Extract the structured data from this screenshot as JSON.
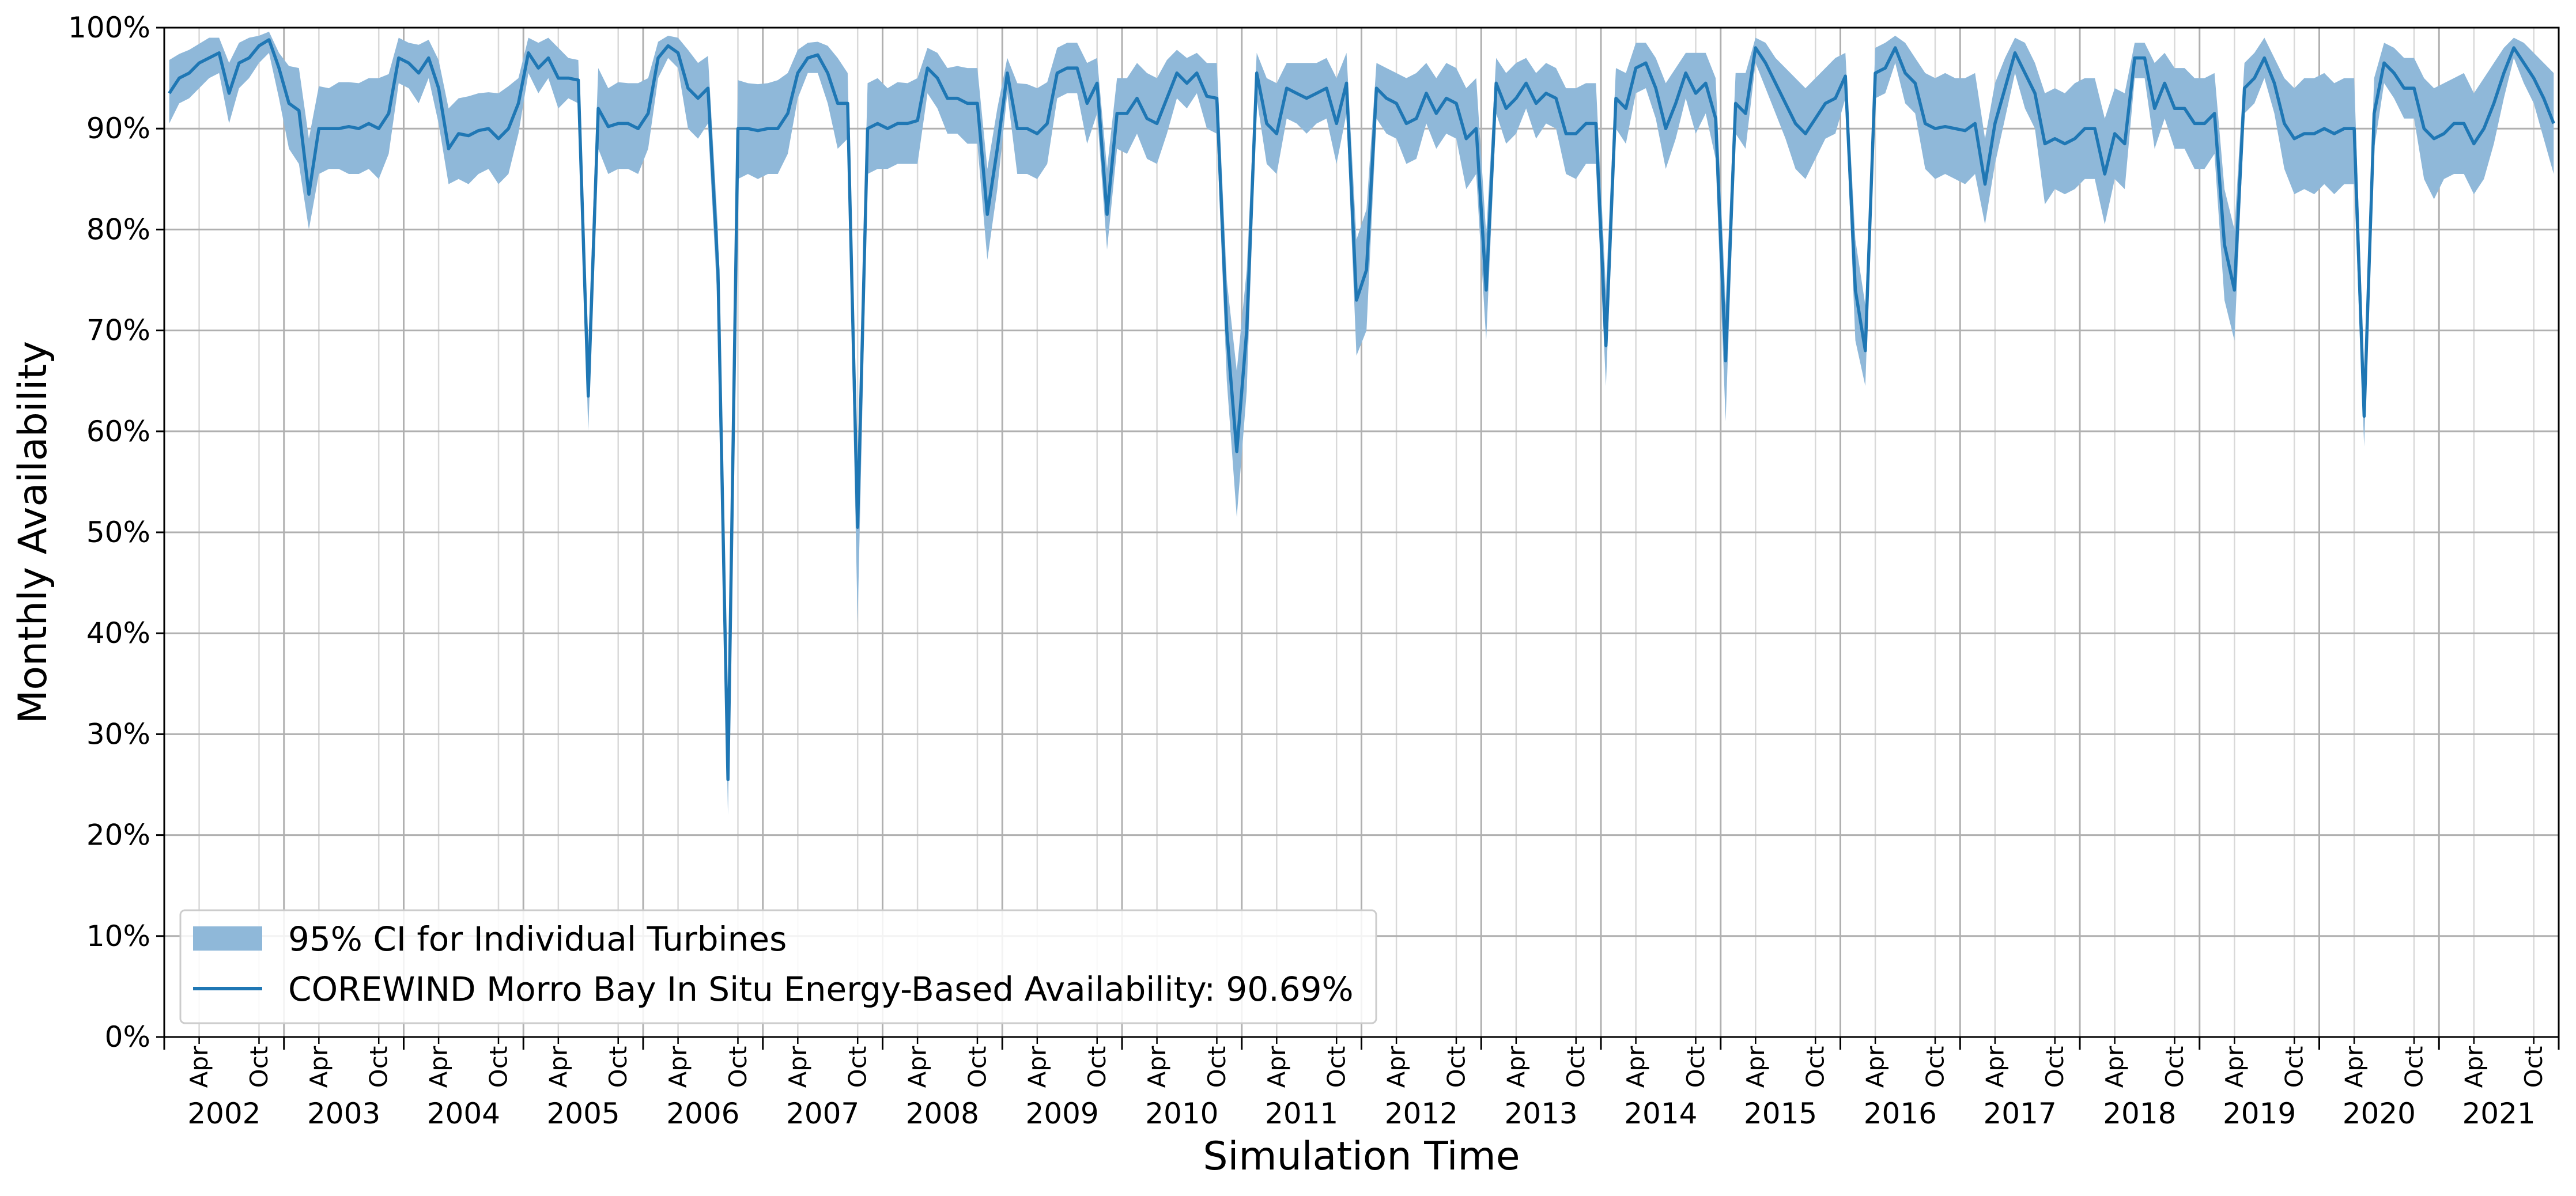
{
  "chart_data": {
    "type": "line",
    "title": "",
    "xlabel": "Simulation Time",
    "ylabel": "Monthly Availability",
    "ylim": [
      0,
      100
    ],
    "y_ticks": [
      "0%",
      "10%",
      "20%",
      "30%",
      "40%",
      "50%",
      "60%",
      "70%",
      "80%",
      "90%",
      "100%"
    ],
    "years": [
      "2002",
      "2003",
      "2004",
      "2005",
      "2006",
      "2007",
      "2008",
      "2009",
      "2010",
      "2011",
      "2012",
      "2013",
      "2014",
      "2015",
      "2016",
      "2017",
      "2018",
      "2019",
      "2020",
      "2021"
    ],
    "month_ticks": [
      "Apr",
      "Oct"
    ],
    "grid": true,
    "legend_position": "lower-left",
    "legend": {
      "ci_label": "95% CI for Individual Turbines",
      "line_label": "COREWIND Morro Bay In Situ Energy-Based Availability: 90.69%"
    },
    "colors": {
      "line": "#1f77b4",
      "band": "#8fb8d9",
      "grid_major": "#b0b0b0",
      "grid_minor": "#d9d9d9"
    },
    "series": [
      {
        "name": "COREWIND Morro Bay In Situ Energy-Based Availability: 90.69%",
        "role": "line",
        "values": [
          93.5,
          95,
          95.5,
          96.5,
          97,
          97.5,
          93.5,
          96.5,
          97,
          98.2,
          98.8,
          96,
          92.5,
          91.8,
          83.5,
          90,
          90,
          90,
          90.2,
          90,
          90.5,
          90,
          91.5,
          97,
          96.5,
          95.5,
          97,
          94,
          88,
          89.5,
          89.3,
          89.8,
          90,
          89,
          90,
          92.5,
          97.5,
          96,
          97,
          95,
          95,
          94.8,
          63.5,
          92,
          90.2,
          90.5,
          90.5,
          90,
          91.5,
          97,
          98.2,
          97.5,
          94,
          93,
          94,
          76,
          25.5,
          90,
          90,
          89.8,
          90,
          90,
          91.5,
          95.5,
          97,
          97.3,
          95.5,
          92.5,
          92.5,
          50.5,
          90,
          90.5,
          90,
          90.5,
          90.5,
          90.8,
          96,
          95,
          93,
          93,
          92.5,
          92.5,
          81.5,
          88,
          95.5,
          90,
          90,
          89.5,
          90.5,
          95.5,
          96,
          96,
          92.5,
          94.5,
          81.5,
          91.5,
          91.5,
          93,
          91,
          90.5,
          93,
          95.5,
          94.5,
          95.5,
          93.2,
          93,
          70,
          58,
          70,
          95.5,
          90.5,
          89.5,
          94,
          93.5,
          93,
          93.5,
          94,
          90.5,
          94.5,
          73,
          76,
          94,
          93,
          92.5,
          90.5,
          91,
          93.5,
          91.5,
          93,
          92.5,
          89,
          90,
          74,
          94.5,
          92,
          93,
          94.5,
          92.5,
          93.5,
          93,
          89.5,
          89.5,
          90.5,
          90.5,
          68.5,
          93,
          92,
          96,
          96.5,
          94,
          90,
          92.5,
          95.5,
          93.5,
          94.5,
          91,
          67,
          92.5,
          91.5,
          98,
          96.5,
          94.5,
          92.5,
          90.5,
          89.5,
          91,
          92.5,
          93,
          95.2,
          74,
          68,
          95.5,
          96,
          98,
          95.5,
          94.5,
          90.5,
          90,
          90.2,
          90,
          89.8,
          90.5,
          84.5,
          90.5,
          94,
          97.5,
          95.5,
          93.5,
          88.5,
          89,
          88.5,
          89,
          90,
          90,
          85.5,
          89.5,
          88.5,
          97,
          97,
          92,
          94.5,
          92,
          92,
          90.5,
          90.5,
          91.5,
          78.5,
          74,
          94,
          95,
          97,
          94.5,
          90.5,
          89,
          89.5,
          89.5,
          90,
          89.5,
          90,
          90,
          61.5,
          91.5,
          96.5,
          95.5,
          94,
          94,
          90,
          89,
          89.5,
          90.5,
          90.5,
          88.5,
          90,
          92.5,
          95.5,
          98,
          96.5,
          95,
          93,
          90.5,
          90,
          90,
          84.5,
          90,
          89,
          82,
          90.5,
          95,
          97,
          95.5,
          95,
          95,
          94.5
        ]
      },
      {
        "name": "95% CI for Individual Turbines (upper)",
        "role": "band-upper",
        "values": [
          96.8,
          97.4,
          97.8,
          98.4,
          99,
          99,
          96.5,
          98.5,
          99,
          99.2,
          99.6,
          97.5,
          96.2,
          96,
          89,
          94.2,
          94,
          94.6,
          94.6,
          94.5,
          95,
          95,
          95.4,
          99,
          98.5,
          98.3,
          98.8,
          96.8,
          92,
          93,
          93.2,
          93.5,
          93.6,
          93.5,
          94.2,
          95,
          99,
          98.5,
          99,
          98,
          97,
          96.8,
          68.5,
          96,
          94,
          94.6,
          94.5,
          94.5,
          95,
          98.6,
          99.2,
          99,
          97.8,
          96.5,
          97.2,
          80,
          30,
          94.8,
          94.5,
          94.4,
          94.5,
          94.8,
          95.5,
          97.8,
          98.5,
          98.6,
          98.2,
          97,
          95.5,
          56,
          94.5,
          95,
          94,
          94.6,
          94.5,
          95,
          98,
          97.5,
          96,
          96.2,
          96,
          96,
          86,
          92,
          97,
          94.5,
          94.4,
          94,
          94.6,
          98,
          98.5,
          98.5,
          96.5,
          97,
          86,
          95,
          95,
          96.5,
          95.5,
          95,
          96.8,
          97.8,
          97,
          97.5,
          96.5,
          96.5,
          75,
          66,
          76,
          97.5,
          95,
          94.5,
          96.5,
          96.5,
          96.5,
          96.5,
          97,
          95,
          97.5,
          79,
          82,
          96.5,
          96,
          95.5,
          95,
          95.5,
          96.5,
          95,
          96.5,
          96,
          94,
          95,
          79.5,
          97,
          95.5,
          96.5,
          97,
          95.5,
          96.5,
          96,
          94,
          94,
          94.5,
          94.5,
          74,
          96,
          95.5,
          98.5,
          98.5,
          97,
          94.5,
          96,
          97.5,
          97.5,
          97.5,
          95,
          72.5,
          95.5,
          95.5,
          99,
          98.5,
          97,
          96,
          95,
          94,
          95,
          96,
          97,
          97.5,
          79,
          72.5,
          98,
          98.5,
          99.2,
          98.5,
          97,
          95.5,
          95,
          95.5,
          95,
          95,
          95.5,
          89,
          94.5,
          97,
          99,
          98.5,
          96.5,
          93.5,
          94,
          93.5,
          94.5,
          95,
          95,
          91,
          94,
          93.5,
          98.5,
          98.5,
          96.5,
          97.5,
          96,
          96,
          95,
          95,
          95.5,
          84,
          80,
          96.5,
          97.5,
          99,
          97,
          95,
          94,
          95,
          95,
          95.5,
          94.5,
          95,
          95,
          65.5,
          95,
          98.5,
          98,
          97,
          97,
          95,
          94,
          94.5,
          95,
          95.5,
          93.5,
          95,
          96.5,
          98,
          99,
          98.5,
          97.5,
          96.5,
          95.5,
          94.5,
          94.5,
          89.5,
          95,
          94,
          88,
          95,
          97.5,
          98.8,
          98.3,
          98,
          97.8,
          97
        ]
      },
      {
        "name": "95% CI for Individual Turbines (lower)",
        "role": "band-lower",
        "values": [
          90.5,
          92.5,
          93,
          94,
          95,
          95.5,
          90.5,
          94,
          95,
          96.5,
          97.5,
          93,
          88,
          86.5,
          80,
          85.5,
          86,
          86,
          85.5,
          85.5,
          86,
          85,
          87.5,
          94.5,
          94,
          92.5,
          95,
          90.5,
          84.5,
          85,
          84.5,
          85.5,
          86,
          84.5,
          85.5,
          89.5,
          95.5,
          93.5,
          95,
          92,
          93,
          92.5,
          60,
          88,
          85.5,
          86,
          86,
          85.5,
          88,
          95,
          97,
          96,
          90,
          89,
          90.5,
          72,
          22,
          85,
          85.5,
          85,
          85.5,
          85.5,
          87.5,
          93,
          95.5,
          95.5,
          92.5,
          88,
          89,
          41,
          85.5,
          86,
          86,
          86.5,
          86.5,
          86.5,
          93.5,
          92,
          89.5,
          89.5,
          88.5,
          88.5,
          77,
          84,
          93.5,
          85.5,
          85.5,
          85,
          86.5,
          93,
          93.5,
          93.5,
          88.5,
          91.5,
          78,
          88,
          87.5,
          89.5,
          87,
          86.5,
          89.5,
          93,
          92,
          93.5,
          90,
          89.5,
          65,
          51.5,
          64,
          93,
          86.5,
          85.5,
          91,
          90.5,
          89.5,
          90.5,
          91,
          86.5,
          91.5,
          67.5,
          70,
          91,
          89.5,
          89,
          86.5,
          87,
          90.5,
          88,
          89.5,
          89,
          84,
          85.5,
          69,
          91.5,
          88.5,
          89.5,
          92,
          89,
          90.5,
          90,
          85.5,
          85,
          86.5,
          86.5,
          64.5,
          90,
          88.5,
          93.5,
          94,
          91,
          86,
          89,
          93,
          89.5,
          91.5,
          87,
          61,
          89.5,
          88,
          96.5,
          94,
          91.5,
          89,
          86,
          85,
          87,
          89,
          89.5,
          93,
          69,
          64.5,
          93,
          93.5,
          96.5,
          92.5,
          91.5,
          86,
          85,
          85.5,
          85,
          84.5,
          85.5,
          80.5,
          86.5,
          91,
          95.5,
          92,
          90,
          82.5,
          84,
          83.5,
          84,
          85,
          85,
          80.5,
          85,
          84,
          95,
          95,
          88,
          91,
          88,
          88,
          86,
          86,
          87.5,
          73,
          69,
          91.5,
          92.5,
          95,
          91.5,
          86,
          83.5,
          84,
          83.5,
          84.5,
          83.5,
          84.5,
          84.5,
          58.5,
          88,
          94.5,
          93,
          91,
          91,
          85,
          83,
          85,
          85.5,
          85.5,
          83.5,
          85,
          88.5,
          93,
          97,
          94.5,
          92.5,
          89,
          85.5,
          85.5,
          85.5,
          80,
          85,
          84,
          79,
          86,
          92.5,
          95.5,
          92.5,
          92,
          92.5,
          92
        ]
      }
    ]
  }
}
